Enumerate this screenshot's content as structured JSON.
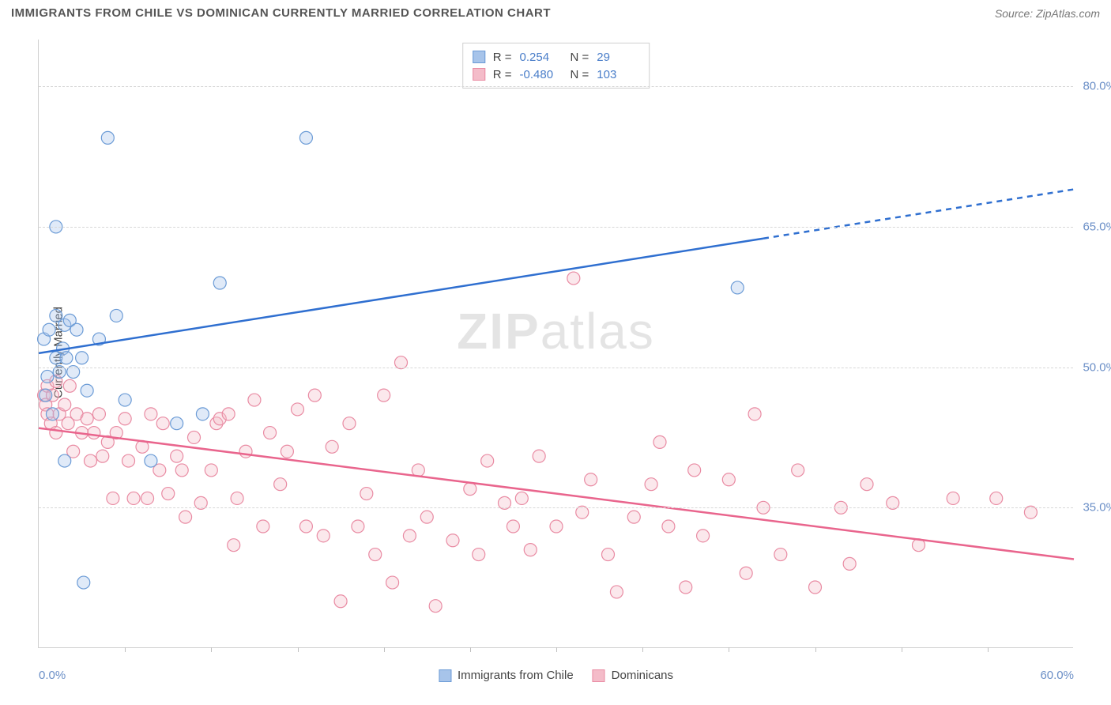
{
  "header": {
    "title": "IMMIGRANTS FROM CHILE VS DOMINICAN CURRENTLY MARRIED CORRELATION CHART",
    "source_prefix": "Source: ",
    "source_name": "ZipAtlas.com"
  },
  "watermark": {
    "a": "ZIP",
    "b": "atlas"
  },
  "chart": {
    "type": "scatter",
    "xlim": [
      0,
      60
    ],
    "ylim": [
      20,
      85
    ],
    "background_color": "#ffffff",
    "grid_color": "#d8d8d8",
    "axis_color": "#d0d0d0",
    "ylabel": "Currently Married",
    "ylabel_color": "#444444",
    "yticks": [
      {
        "value": 35,
        "label": "35.0%"
      },
      {
        "value": 50,
        "label": "50.0%"
      },
      {
        "value": 65,
        "label": "65.0%"
      },
      {
        "value": 80,
        "label": "80.0%"
      }
    ],
    "xticks_minor_step": 5,
    "xtick_labels": [
      {
        "value": 0,
        "label": "0.0%"
      },
      {
        "value": 60,
        "label": "60.0%"
      }
    ],
    "tick_label_color": "#6b8fc7",
    "tick_label_fontsize": 15,
    "marker_radius": 8,
    "marker_fill_opacity": 0.35,
    "marker_stroke_width": 1.2,
    "line_width": 2.5,
    "series": [
      {
        "id": "chile",
        "label": "Immigrants from Chile",
        "color_fill": "#a7c4ea",
        "color_stroke": "#6b9bd6",
        "line_color": "#2f6fd0",
        "R": "0.254",
        "N": "29",
        "trend": {
          "x1": 0,
          "y1": 51.5,
          "x2": 60,
          "y2": 69.0,
          "dash_after_x": 42
        },
        "points": [
          [
            0.3,
            53
          ],
          [
            0.4,
            47
          ],
          [
            0.5,
            49
          ],
          [
            0.6,
            54
          ],
          [
            0.8,
            45
          ],
          [
            1.0,
            51
          ],
          [
            1.0,
            55.5
          ],
          [
            1.0,
            65
          ],
          [
            1.2,
            49.5
          ],
          [
            1.4,
            52
          ],
          [
            1.5,
            40
          ],
          [
            1.5,
            54.5
          ],
          [
            1.6,
            51
          ],
          [
            1.8,
            55
          ],
          [
            2.0,
            49.5
          ],
          [
            2.2,
            54
          ],
          [
            2.5,
            51
          ],
          [
            2.6,
            27
          ],
          [
            2.8,
            47.5
          ],
          [
            3.5,
            53
          ],
          [
            4.0,
            74.5
          ],
          [
            4.5,
            55.5
          ],
          [
            5.0,
            46.5
          ],
          [
            6.5,
            40
          ],
          [
            8.0,
            44
          ],
          [
            9.5,
            45
          ],
          [
            10.5,
            59
          ],
          [
            15.5,
            74.5
          ],
          [
            40.5,
            58.5
          ]
        ]
      },
      {
        "id": "dominican",
        "label": "Dominicans",
        "color_fill": "#f4bcc9",
        "color_stroke": "#e98ba3",
        "line_color": "#e9658d",
        "R": "-0.480",
        "N": "103",
        "trend": {
          "x1": 0,
          "y1": 43.5,
          "x2": 60,
          "y2": 29.5,
          "dash_after_x": 60
        },
        "points": [
          [
            0.3,
            47
          ],
          [
            0.4,
            46
          ],
          [
            0.5,
            48
          ],
          [
            0.5,
            45
          ],
          [
            0.7,
            44
          ],
          [
            0.8,
            47
          ],
          [
            1.0,
            48.5
          ],
          [
            1.0,
            43
          ],
          [
            1.2,
            45
          ],
          [
            1.5,
            46
          ],
          [
            1.7,
            44
          ],
          [
            1.8,
            48
          ],
          [
            2.0,
            41
          ],
          [
            2.2,
            45
          ],
          [
            2.5,
            43
          ],
          [
            2.8,
            44.5
          ],
          [
            3.0,
            40
          ],
          [
            3.2,
            43
          ],
          [
            3.5,
            45
          ],
          [
            3.7,
            40.5
          ],
          [
            4.0,
            42
          ],
          [
            4.3,
            36
          ],
          [
            4.5,
            43
          ],
          [
            5.0,
            44.5
          ],
          [
            5.2,
            40
          ],
          [
            5.5,
            36
          ],
          [
            6.0,
            41.5
          ],
          [
            6.3,
            36
          ],
          [
            6.5,
            45
          ],
          [
            7.0,
            39
          ],
          [
            7.2,
            44
          ],
          [
            7.5,
            36.5
          ],
          [
            8.0,
            40.5
          ],
          [
            8.3,
            39
          ],
          [
            8.5,
            34
          ],
          [
            9.0,
            42.5
          ],
          [
            9.4,
            35.5
          ],
          [
            10.0,
            39
          ],
          [
            10.3,
            44
          ],
          [
            10.5,
            44.5
          ],
          [
            11.0,
            45
          ],
          [
            11.3,
            31
          ],
          [
            11.5,
            36
          ],
          [
            12.0,
            41
          ],
          [
            12.5,
            46.5
          ],
          [
            13.0,
            33
          ],
          [
            13.4,
            43
          ],
          [
            14.0,
            37.5
          ],
          [
            14.4,
            41
          ],
          [
            15.0,
            45.5
          ],
          [
            15.5,
            33
          ],
          [
            16.0,
            47
          ],
          [
            16.5,
            32
          ],
          [
            17.0,
            41.5
          ],
          [
            17.5,
            25
          ],
          [
            18.0,
            44
          ],
          [
            18.5,
            33
          ],
          [
            19.0,
            36.5
          ],
          [
            19.5,
            30
          ],
          [
            20.0,
            47
          ],
          [
            20.5,
            27
          ],
          [
            21.0,
            50.5
          ],
          [
            21.5,
            32
          ],
          [
            22.0,
            39
          ],
          [
            22.5,
            34
          ],
          [
            23.0,
            24.5
          ],
          [
            24.0,
            31.5
          ],
          [
            25.0,
            37
          ],
          [
            25.5,
            30
          ],
          [
            26.0,
            40
          ],
          [
            27.0,
            35.5
          ],
          [
            27.5,
            33
          ],
          [
            28.0,
            36
          ],
          [
            28.5,
            30.5
          ],
          [
            29.0,
            40.5
          ],
          [
            30.0,
            33
          ],
          [
            31.0,
            59.5
          ],
          [
            31.5,
            34.5
          ],
          [
            32.0,
            38
          ],
          [
            33.0,
            30
          ],
          [
            33.5,
            26
          ],
          [
            34.5,
            34
          ],
          [
            35.5,
            37.5
          ],
          [
            36.0,
            42
          ],
          [
            36.5,
            33
          ],
          [
            37.5,
            26.5
          ],
          [
            38.0,
            39
          ],
          [
            38.5,
            32
          ],
          [
            40.0,
            38
          ],
          [
            41.0,
            28
          ],
          [
            41.5,
            45
          ],
          [
            42.0,
            35
          ],
          [
            43.0,
            30
          ],
          [
            44.0,
            39
          ],
          [
            45.0,
            26.5
          ],
          [
            46.5,
            35
          ],
          [
            47.0,
            29
          ],
          [
            48.0,
            37.5
          ],
          [
            49.5,
            35.5
          ],
          [
            51.0,
            31
          ],
          [
            53.0,
            36
          ],
          [
            55.5,
            36
          ],
          [
            57.5,
            34.5
          ]
        ]
      }
    ]
  },
  "legend_top": {
    "stat1_label": "R =",
    "stat2_label": "N ="
  }
}
